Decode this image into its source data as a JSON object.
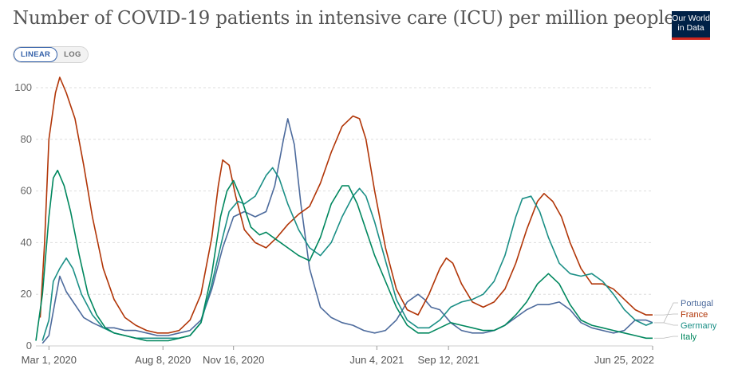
{
  "header": {
    "title": "Number of COVID-19 patients in intensive care (ICU) per million people",
    "logo_line1": "Our World",
    "logo_line2": "in Data"
  },
  "controls": {
    "linear_label": "LINEAR",
    "log_label": "LOG"
  },
  "chart_data": {
    "type": "line",
    "title": "Number of COVID-19 patients in intensive care (ICU) per million people",
    "xlabel": "",
    "ylabel": "",
    "ylim": [
      0,
      108
    ],
    "grid": true,
    "legend_position": "right",
    "y_ticks": [
      0,
      20,
      40,
      60,
      80,
      100
    ],
    "x_ticks": [
      {
        "label": "Mar 1, 2020",
        "month": 0
      },
      {
        "label": "Aug 8, 2020",
        "month": 5.25
      },
      {
        "label": "Nov 16, 2020",
        "month": 8.5
      },
      {
        "label": "Jun 4, 2021",
        "month": 15.1
      },
      {
        "label": "Sep 12, 2021",
        "month": 18.4
      },
      {
        "label": "Jun 25, 2022",
        "month": 27.8
      }
    ],
    "x_range_months": [
      -0.6,
      27.8
    ],
    "series": [
      {
        "name": "Portugal",
        "color": "#4c6a9c",
        "points": [
          [
            -0.3,
            1
          ],
          [
            0,
            4
          ],
          [
            0.3,
            18
          ],
          [
            0.5,
            27
          ],
          [
            0.8,
            21
          ],
          [
            1.2,
            16
          ],
          [
            1.6,
            11
          ],
          [
            2,
            9
          ],
          [
            2.5,
            7
          ],
          [
            3,
            7
          ],
          [
            3.5,
            6
          ],
          [
            4,
            6
          ],
          [
            4.5,
            5
          ],
          [
            5,
            4
          ],
          [
            5.5,
            4
          ],
          [
            6,
            5
          ],
          [
            6.5,
            6
          ],
          [
            7,
            10
          ],
          [
            7.5,
            22
          ],
          [
            8,
            38
          ],
          [
            8.5,
            50
          ],
          [
            9,
            52
          ],
          [
            9.5,
            50
          ],
          [
            10,
            52
          ],
          [
            10.4,
            62
          ],
          [
            10.8,
            80
          ],
          [
            11,
            88
          ],
          [
            11.3,
            78
          ],
          [
            11.6,
            55
          ],
          [
            12,
            30
          ],
          [
            12.5,
            15
          ],
          [
            13,
            11
          ],
          [
            13.5,
            9
          ],
          [
            14,
            8
          ],
          [
            14.5,
            6
          ],
          [
            15,
            5
          ],
          [
            15.5,
            6
          ],
          [
            16,
            10
          ],
          [
            16.5,
            17
          ],
          [
            17,
            20
          ],
          [
            17.3,
            18
          ],
          [
            17.6,
            15
          ],
          [
            18,
            14
          ],
          [
            18.5,
            9
          ],
          [
            19,
            6
          ],
          [
            19.5,
            5
          ],
          [
            20,
            5
          ],
          [
            20.5,
            6
          ],
          [
            21,
            8
          ],
          [
            21.5,
            11
          ],
          [
            22,
            14
          ],
          [
            22.5,
            16
          ],
          [
            23,
            16
          ],
          [
            23.5,
            17
          ],
          [
            24,
            14
          ],
          [
            24.5,
            9
          ],
          [
            25,
            7
          ],
          [
            25.5,
            6
          ],
          [
            26,
            5
          ],
          [
            26.5,
            6
          ],
          [
            27,
            10
          ],
          [
            27.5,
            10
          ],
          [
            27.8,
            9
          ]
        ]
      },
      {
        "name": "France",
        "color": "#b13507",
        "points": [
          [
            -0.4,
            11
          ],
          [
            -0.2,
            40
          ],
          [
            0,
            80
          ],
          [
            0.3,
            98
          ],
          [
            0.5,
            104
          ],
          [
            0.8,
            98
          ],
          [
            1.2,
            88
          ],
          [
            1.6,
            70
          ],
          [
            2,
            50
          ],
          [
            2.5,
            30
          ],
          [
            3,
            18
          ],
          [
            3.5,
            11
          ],
          [
            4,
            8
          ],
          [
            4.5,
            6
          ],
          [
            5,
            5
          ],
          [
            5.5,
            5
          ],
          [
            6,
            6
          ],
          [
            6.5,
            10
          ],
          [
            7,
            20
          ],
          [
            7.5,
            42
          ],
          [
            7.8,
            62
          ],
          [
            8,
            72
          ],
          [
            8.3,
            70
          ],
          [
            8.6,
            58
          ],
          [
            9,
            45
          ],
          [
            9.5,
            40
          ],
          [
            10,
            38
          ],
          [
            10.5,
            42
          ],
          [
            11,
            47
          ],
          [
            11.5,
            51
          ],
          [
            12,
            54
          ],
          [
            12.5,
            63
          ],
          [
            13,
            75
          ],
          [
            13.5,
            85
          ],
          [
            14,
            89
          ],
          [
            14.3,
            88
          ],
          [
            14.6,
            80
          ],
          [
            15,
            60
          ],
          [
            15.5,
            38
          ],
          [
            16,
            22
          ],
          [
            16.5,
            14
          ],
          [
            17,
            12
          ],
          [
            17.5,
            20
          ],
          [
            18,
            30
          ],
          [
            18.3,
            34
          ],
          [
            18.6,
            32
          ],
          [
            19,
            24
          ],
          [
            19.5,
            17
          ],
          [
            20,
            15
          ],
          [
            20.5,
            17
          ],
          [
            21,
            22
          ],
          [
            21.5,
            32
          ],
          [
            22,
            45
          ],
          [
            22.5,
            56
          ],
          [
            22.8,
            59
          ],
          [
            23.2,
            56
          ],
          [
            23.6,
            50
          ],
          [
            24,
            40
          ],
          [
            24.5,
            30
          ],
          [
            25,
            24
          ],
          [
            25.5,
            24
          ],
          [
            26,
            22
          ],
          [
            26.5,
            18
          ],
          [
            27,
            14
          ],
          [
            27.5,
            12
          ],
          [
            27.8,
            12
          ]
        ]
      },
      {
        "name": "Germany",
        "color": "#1b8f86",
        "points": [
          [
            -0.3,
            2
          ],
          [
            0,
            10
          ],
          [
            0.2,
            25
          ],
          [
            0.5,
            30
          ],
          [
            0.8,
            34
          ],
          [
            1.1,
            30
          ],
          [
            1.5,
            20
          ],
          [
            2,
            12
          ],
          [
            2.5,
            7
          ],
          [
            3,
            5
          ],
          [
            3.5,
            4
          ],
          [
            4,
            3
          ],
          [
            4.5,
            3
          ],
          [
            5,
            3
          ],
          [
            5.5,
            3
          ],
          [
            6,
            3
          ],
          [
            6.5,
            4
          ],
          [
            7,
            9
          ],
          [
            7.5,
            24
          ],
          [
            8,
            42
          ],
          [
            8.3,
            52
          ],
          [
            8.7,
            56
          ],
          [
            9,
            55
          ],
          [
            9.5,
            58
          ],
          [
            10,
            66
          ],
          [
            10.3,
            69
          ],
          [
            10.6,
            65
          ],
          [
            11,
            55
          ],
          [
            11.5,
            45
          ],
          [
            12,
            38
          ],
          [
            12.5,
            35
          ],
          [
            13,
            40
          ],
          [
            13.5,
            50
          ],
          [
            14,
            58
          ],
          [
            14.3,
            61
          ],
          [
            14.6,
            58
          ],
          [
            15,
            48
          ],
          [
            15.5,
            33
          ],
          [
            16,
            18
          ],
          [
            16.5,
            10
          ],
          [
            17,
            7
          ],
          [
            17.5,
            7
          ],
          [
            18,
            10
          ],
          [
            18.5,
            15
          ],
          [
            19,
            17
          ],
          [
            19.5,
            18
          ],
          [
            20,
            20
          ],
          [
            20.5,
            25
          ],
          [
            21,
            35
          ],
          [
            21.5,
            50
          ],
          [
            21.8,
            57
          ],
          [
            22.2,
            58
          ],
          [
            22.6,
            52
          ],
          [
            23,
            42
          ],
          [
            23.5,
            32
          ],
          [
            24,
            28
          ],
          [
            24.5,
            27
          ],
          [
            25,
            28
          ],
          [
            25.5,
            25
          ],
          [
            26,
            20
          ],
          [
            26.5,
            14
          ],
          [
            27,
            10
          ],
          [
            27.5,
            8
          ],
          [
            27.8,
            9
          ]
        ]
      },
      {
        "name": "Italy",
        "color": "#00875e",
        "points": [
          [
            -0.6,
            2
          ],
          [
            -0.3,
            20
          ],
          [
            0,
            50
          ],
          [
            0.2,
            65
          ],
          [
            0.4,
            68
          ],
          [
            0.7,
            62
          ],
          [
            1,
            52
          ],
          [
            1.4,
            35
          ],
          [
            1.8,
            20
          ],
          [
            2.2,
            12
          ],
          [
            2.6,
            7
          ],
          [
            3,
            5
          ],
          [
            3.5,
            4
          ],
          [
            4,
            3
          ],
          [
            4.5,
            2
          ],
          [
            5,
            2
          ],
          [
            5.5,
            2
          ],
          [
            6,
            3
          ],
          [
            6.5,
            4
          ],
          [
            7,
            9
          ],
          [
            7.5,
            28
          ],
          [
            7.9,
            50
          ],
          [
            8.2,
            60
          ],
          [
            8.5,
            64
          ],
          [
            8.9,
            56
          ],
          [
            9.3,
            46
          ],
          [
            9.7,
            43
          ],
          [
            10,
            44
          ],
          [
            10.5,
            41
          ],
          [
            11,
            38
          ],
          [
            11.5,
            35
          ],
          [
            12,
            33
          ],
          [
            12.5,
            42
          ],
          [
            13,
            55
          ],
          [
            13.5,
            62
          ],
          [
            13.8,
            62
          ],
          [
            14.2,
            55
          ],
          [
            14.6,
            45
          ],
          [
            15,
            35
          ],
          [
            15.5,
            25
          ],
          [
            16,
            15
          ],
          [
            16.5,
            8
          ],
          [
            17,
            5
          ],
          [
            17.5,
            5
          ],
          [
            18,
            7
          ],
          [
            18.5,
            9
          ],
          [
            19,
            8
          ],
          [
            19.5,
            7
          ],
          [
            20,
            6
          ],
          [
            20.5,
            6
          ],
          [
            21,
            8
          ],
          [
            21.5,
            12
          ],
          [
            22,
            17
          ],
          [
            22.5,
            24
          ],
          [
            23,
            28
          ],
          [
            23.5,
            24
          ],
          [
            24,
            16
          ],
          [
            24.5,
            10
          ],
          [
            25,
            8
          ],
          [
            25.5,
            7
          ],
          [
            26,
            6
          ],
          [
            26.5,
            5
          ],
          [
            27,
            4
          ],
          [
            27.5,
            3
          ],
          [
            27.8,
            3
          ]
        ]
      }
    ]
  }
}
